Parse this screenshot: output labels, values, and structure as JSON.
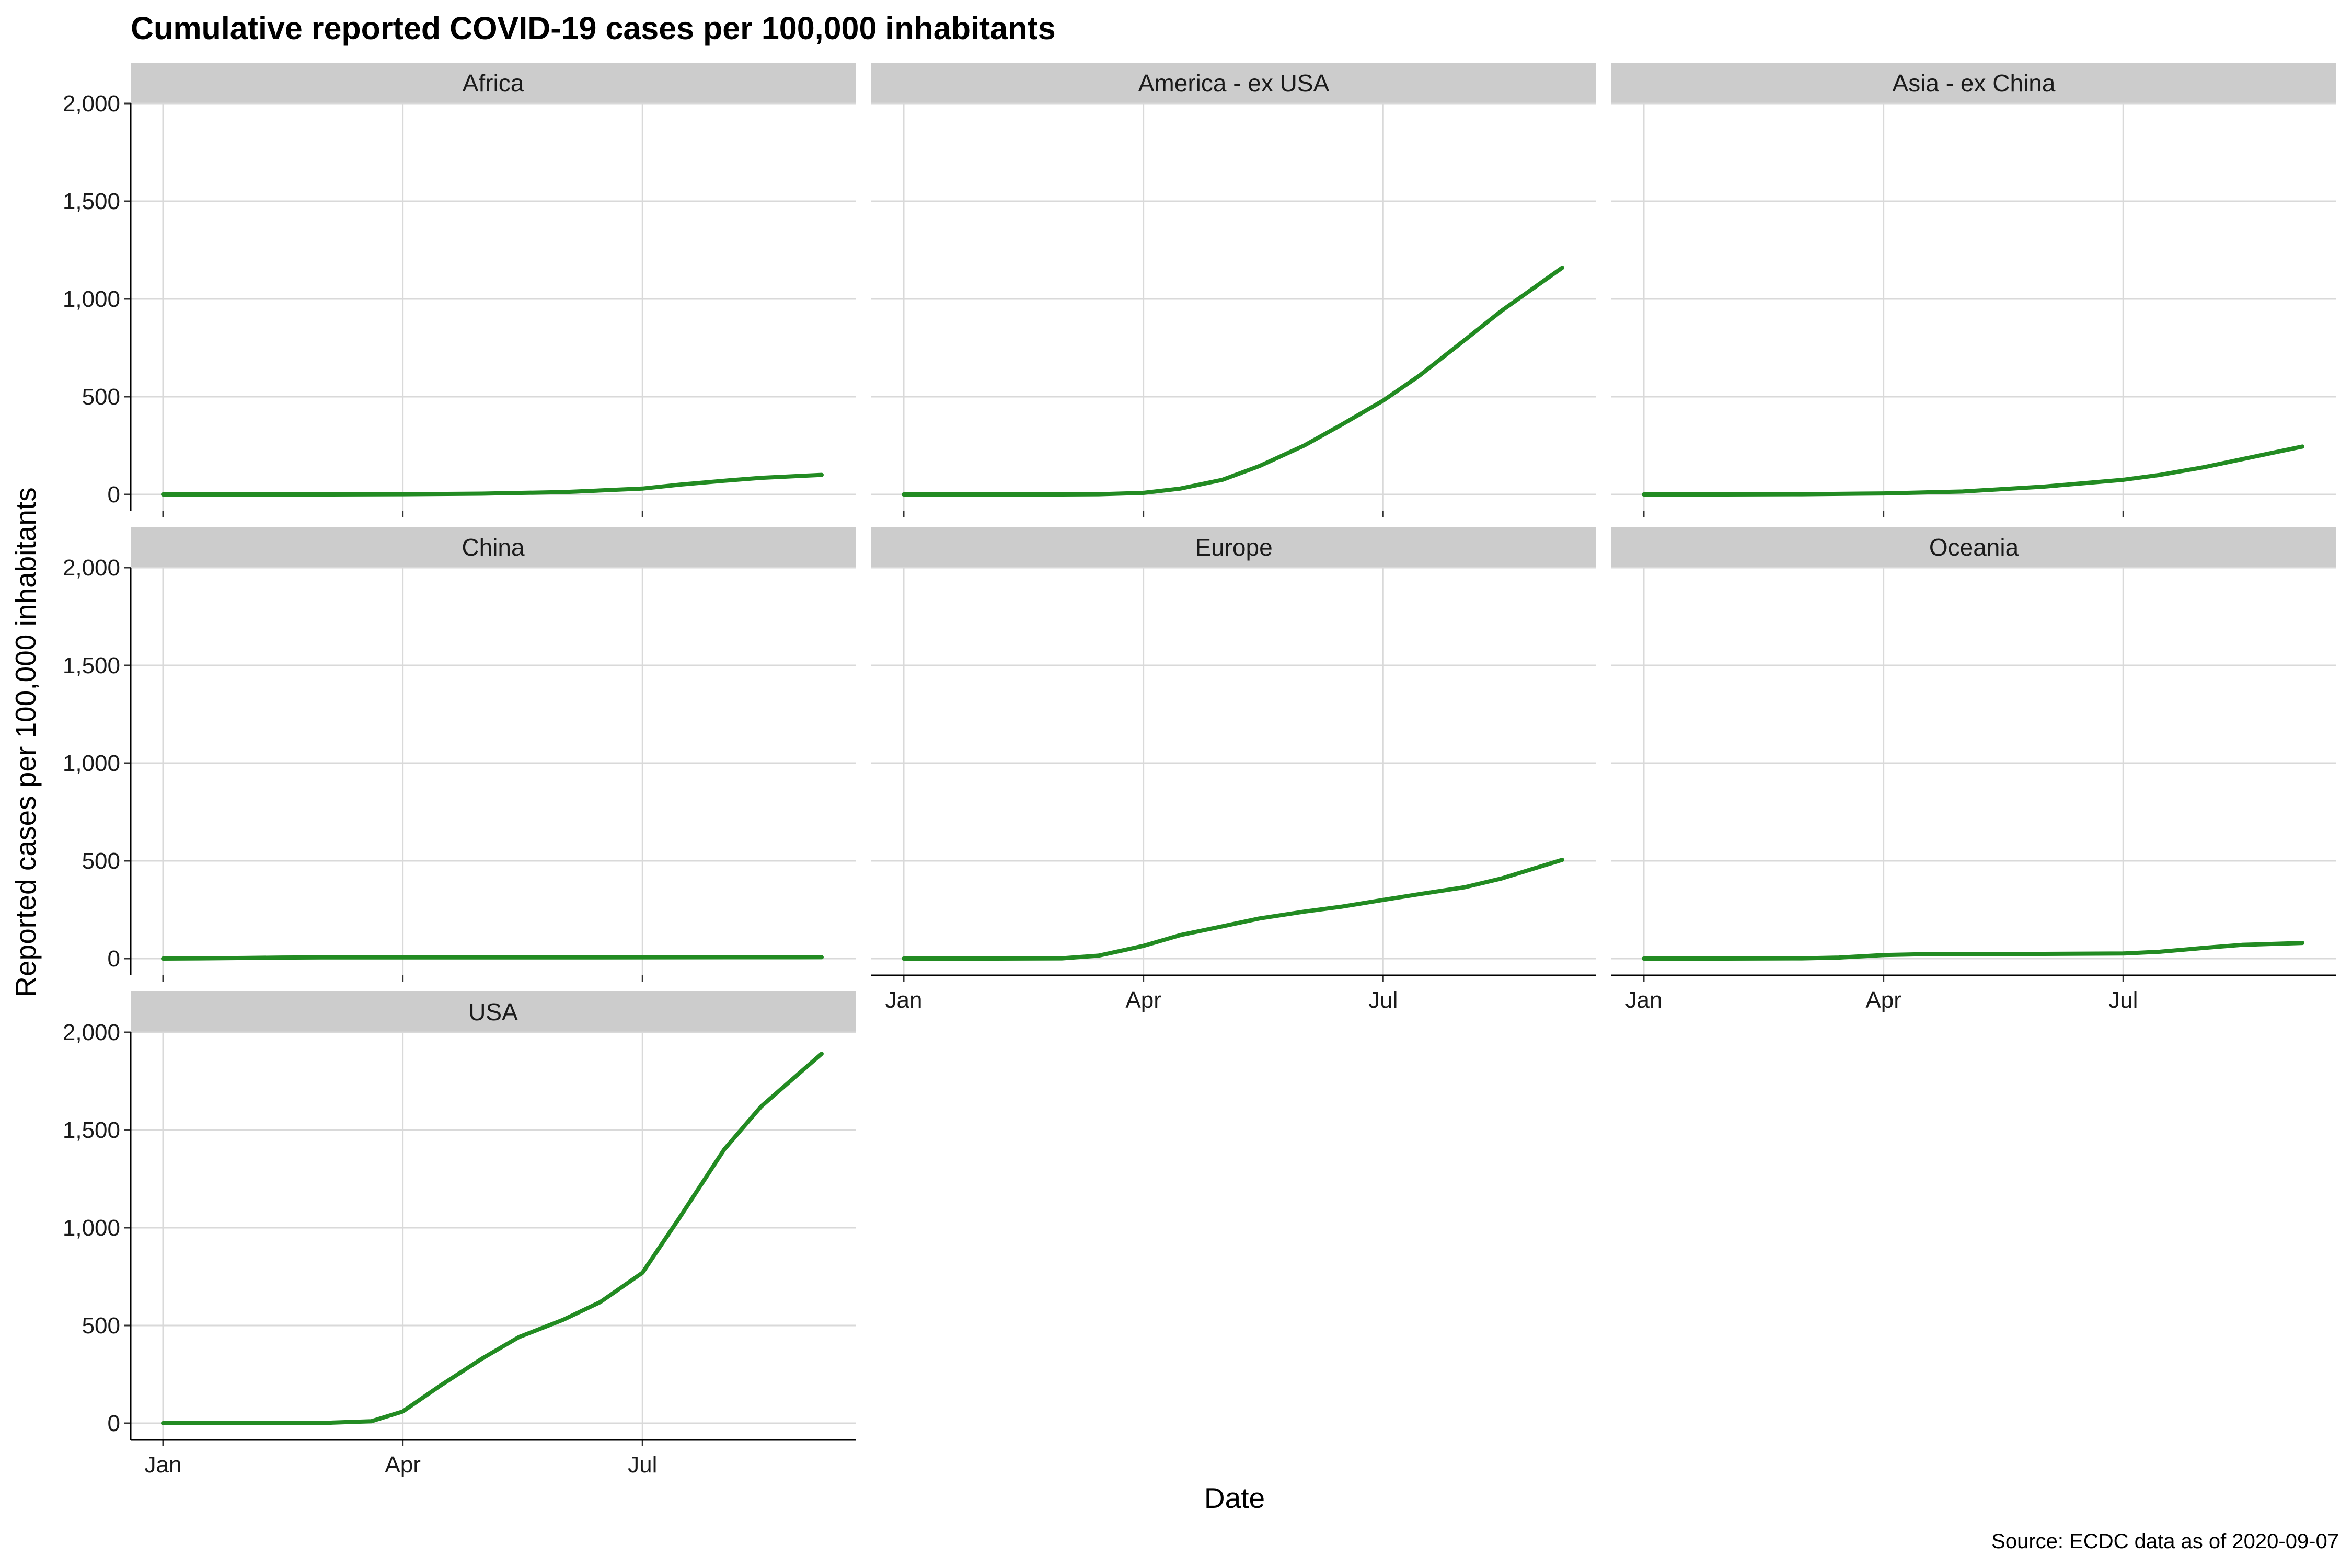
{
  "chart_data": {
    "type": "line",
    "title": "Cumulative reported COVID-19 cases per 100,000 inhabitants",
    "xlabel": "Date",
    "ylabel": "Reported cases per 100,000 inhabitants",
    "caption": "Source: ECDC data as of 2020-09-07",
    "line_color": "#228B22",
    "strip_color": "#CCCCCC",
    "grid_color": "#D9D9D9",
    "ylim": [
      0,
      2000
    ],
    "xlim": [
      "2020-01-01",
      "2020-09-07"
    ],
    "y_ticks": [
      0,
      500,
      1000,
      1500,
      2000
    ],
    "y_tick_labels": [
      "0",
      "500",
      "1,000",
      "1,500",
      "2,000"
    ],
    "x_ticks": [
      "2020-01-01",
      "2020-04-01",
      "2020-07-01"
    ],
    "x_tick_labels": [
      "Jan",
      "Apr",
      "Jul"
    ],
    "grid": true,
    "panels": [
      {
        "name": "Africa",
        "x": [
          "2020-01-01",
          "2020-02-01",
          "2020-03-01",
          "2020-04-01",
          "2020-05-01",
          "2020-06-01",
          "2020-07-01",
          "2020-07-15",
          "2020-08-01",
          "2020-08-15",
          "2020-09-07"
        ],
        "y": [
          0,
          0,
          0,
          1,
          4,
          12,
          30,
          50,
          70,
          85,
          100
        ]
      },
      {
        "name": "America - ex USA",
        "x": [
          "2020-01-01",
          "2020-02-01",
          "2020-03-01",
          "2020-03-15",
          "2020-04-01",
          "2020-04-15",
          "2020-05-01",
          "2020-05-15",
          "2020-06-01",
          "2020-06-15",
          "2020-07-01",
          "2020-07-15",
          "2020-08-01",
          "2020-08-15",
          "2020-09-07"
        ],
        "y": [
          0,
          0,
          0,
          1,
          8,
          30,
          75,
          145,
          250,
          355,
          480,
          610,
          790,
          940,
          1160
        ]
      },
      {
        "name": "Asia - ex China",
        "x": [
          "2020-01-01",
          "2020-02-01",
          "2020-03-01",
          "2020-04-01",
          "2020-05-01",
          "2020-06-01",
          "2020-07-01",
          "2020-07-15",
          "2020-08-01",
          "2020-08-15",
          "2020-09-07"
        ],
        "y": [
          0,
          0,
          1,
          5,
          15,
          40,
          75,
          100,
          140,
          180,
          245
        ]
      },
      {
        "name": "China",
        "x": [
          "2020-01-01",
          "2020-01-15",
          "2020-02-01",
          "2020-02-15",
          "2020-03-01",
          "2020-04-01",
          "2020-06-01",
          "2020-09-07"
        ],
        "y": [
          0,
          1,
          3,
          5,
          6,
          6,
          6,
          7
        ]
      },
      {
        "name": "Europe",
        "x": [
          "2020-01-01",
          "2020-02-01",
          "2020-03-01",
          "2020-03-15",
          "2020-04-01",
          "2020-04-15",
          "2020-05-01",
          "2020-05-15",
          "2020-06-01",
          "2020-06-15",
          "2020-07-01",
          "2020-07-15",
          "2020-08-01",
          "2020-08-15",
          "2020-09-07"
        ],
        "y": [
          0,
          0,
          1,
          15,
          65,
          120,
          165,
          205,
          240,
          265,
          300,
          330,
          365,
          410,
          505
        ]
      },
      {
        "name": "Oceania",
        "x": [
          "2020-01-01",
          "2020-02-01",
          "2020-03-01",
          "2020-03-15",
          "2020-04-01",
          "2020-04-15",
          "2020-05-01",
          "2020-06-01",
          "2020-07-01",
          "2020-07-15",
          "2020-08-01",
          "2020-08-15",
          "2020-09-07"
        ],
        "y": [
          0,
          0,
          1,
          5,
          18,
          22,
          23,
          24,
          26,
          35,
          55,
          70,
          80
        ]
      },
      {
        "name": "USA",
        "x": [
          "2020-01-01",
          "2020-02-01",
          "2020-03-01",
          "2020-03-20",
          "2020-04-01",
          "2020-04-15",
          "2020-05-01",
          "2020-05-15",
          "2020-06-01",
          "2020-06-15",
          "2020-07-01",
          "2020-07-15",
          "2020-08-01",
          "2020-08-15",
          "2020-09-07"
        ],
        "y": [
          0,
          0,
          1,
          10,
          60,
          190,
          330,
          440,
          530,
          620,
          770,
          1050,
          1400,
          1620,
          1890
        ]
      }
    ]
  }
}
